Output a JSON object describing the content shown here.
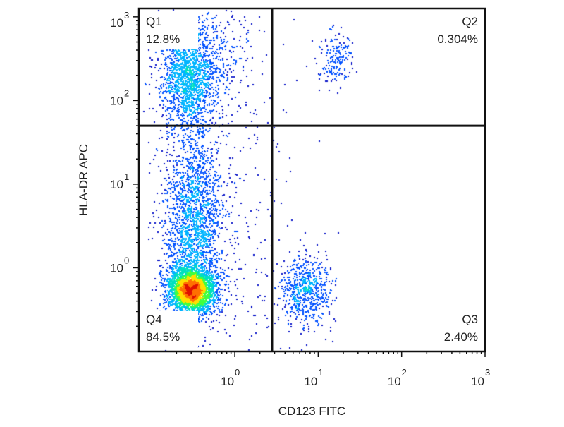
{
  "chart_data": {
    "type": "scatter",
    "subtype": "flow-cytometry density dot plot",
    "xlabel": "CD123 FITC",
    "ylabel": "HLA-DR APC",
    "x_scale": "log",
    "y_scale": "log",
    "x_ticks": [
      {
        "base": "10",
        "exp": "0",
        "value": 1
      },
      {
        "base": "10",
        "exp": "1",
        "value": 10
      },
      {
        "base": "10",
        "exp": "2",
        "value": 100
      },
      {
        "base": "10",
        "exp": "3",
        "value": 1000
      }
    ],
    "y_ticks": [
      {
        "base": "10",
        "exp": "0",
        "value": 1
      },
      {
        "base": "10",
        "exp": "1",
        "value": 10
      },
      {
        "base": "10",
        "exp": "2",
        "value": 100
      },
      {
        "base": "10",
        "exp": "3",
        "value": 1000
      }
    ],
    "quadrants": [
      {
        "name": "Q1",
        "percent": "12.8%",
        "position": "top-left"
      },
      {
        "name": "Q2",
        "percent": "0.304%",
        "position": "top-right"
      },
      {
        "name": "Q3",
        "percent": "2.40%",
        "position": "bottom-right"
      },
      {
        "name": "Q4",
        "percent": "84.5%",
        "position": "bottom-left"
      }
    ],
    "gates": {
      "x": 2.8,
      "y": 50
    },
    "clusters": [
      {
        "x": 0.3,
        "y": 0.55,
        "sx": 0.14,
        "sy": 0.13,
        "count": 3200,
        "peak": "red"
      },
      {
        "x": 0.32,
        "y": 3.5,
        "sx": 0.18,
        "sy": 0.55,
        "count": 2000,
        "peak": "cyan"
      },
      {
        "x": 0.27,
        "y": 180,
        "sx": 0.16,
        "sy": 0.32,
        "count": 1500,
        "peak": "cyan"
      },
      {
        "x": 0.45,
        "y": 400,
        "sx": 0.3,
        "sy": 0.4,
        "count": 500,
        "peak": "blue"
      },
      {
        "x": 7,
        "y": 0.55,
        "sx": 0.16,
        "sy": 0.2,
        "count": 650,
        "peak": "cyan"
      },
      {
        "x": 16,
        "y": 320,
        "sx": 0.1,
        "sy": 0.16,
        "count": 180,
        "peak": "blue"
      },
      {
        "x": 1.0,
        "y": 4,
        "sx": 0.4,
        "sy": 1.0,
        "count": 280,
        "peak": "blue"
      }
    ],
    "colors": {
      "density_scale": [
        "#0a14c8",
        "#0050ff",
        "#00b4ff",
        "#00e0c0",
        "#40ff40",
        "#ffe000",
        "#ff7000",
        "#e01000"
      ],
      "gate_line": "#111111",
      "frame": "#111111"
    },
    "grid": false
  }
}
